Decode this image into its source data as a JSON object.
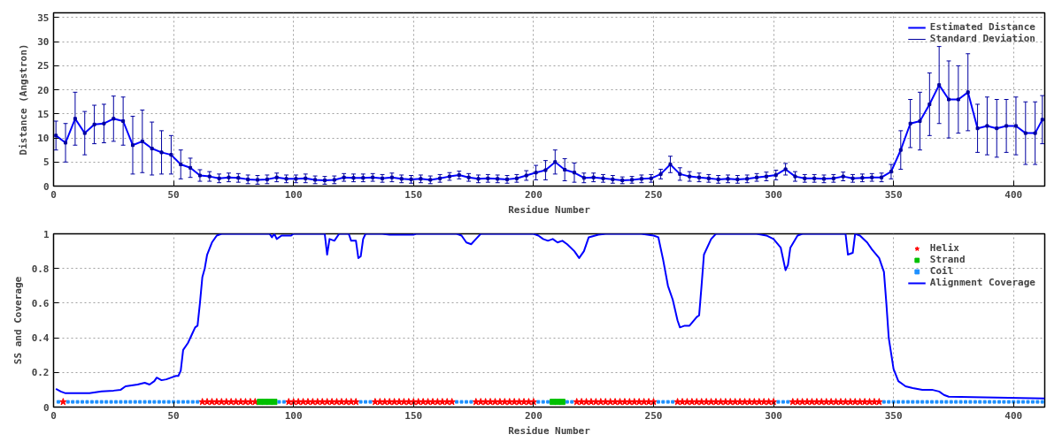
{
  "chart_data": [
    {
      "type": "line",
      "xlabel": "Residue Number",
      "ylabel": "Distance (Angstron)",
      "xlim": [
        0,
        413
      ],
      "ylim": [
        0,
        36
      ],
      "xticks": [
        0,
        50,
        100,
        150,
        200,
        250,
        300,
        350,
        400
      ],
      "yticks": [
        0,
        5,
        10,
        15,
        20,
        25,
        30,
        35
      ],
      "grid": true,
      "legend": "top right",
      "x": [
        1,
        5,
        9,
        13,
        17,
        21,
        25,
        29,
        33,
        37,
        41,
        45,
        49,
        53,
        57,
        61,
        65,
        69,
        73,
        77,
        81,
        85,
        89,
        93,
        97,
        101,
        105,
        109,
        113,
        117,
        121,
        125,
        129,
        133,
        137,
        141,
        145,
        149,
        153,
        157,
        161,
        165,
        169,
        173,
        177,
        181,
        185,
        189,
        193,
        197,
        201,
        205,
        209,
        213,
        217,
        221,
        225,
        229,
        233,
        237,
        241,
        245,
        249,
        253,
        257,
        261,
        265,
        269,
        273,
        277,
        281,
        285,
        289,
        293,
        297,
        301,
        305,
        309,
        313,
        317,
        321,
        325,
        329,
        333,
        337,
        341,
        345,
        349,
        353,
        357,
        361,
        365,
        369,
        373,
        377,
        381,
        385,
        389,
        393,
        397,
        401,
        405,
        409,
        412
      ],
      "series": [
        {
          "name": "Estimated Distance",
          "type": "line",
          "color": "#0000ff",
          "values": [
            10.5,
            9,
            14,
            11,
            12.8,
            13,
            14,
            13.5,
            8.5,
            9.3,
            7.8,
            7,
            6.5,
            4.5,
            3.8,
            2.2,
            2,
            1.6,
            1.8,
            1.7,
            1.4,
            1.3,
            1.4,
            1.8,
            1.5,
            1.5,
            1.6,
            1.3,
            1.2,
            1.3,
            1.8,
            1.7,
            1.7,
            1.8,
            1.6,
            1.8,
            1.5,
            1.4,
            1.5,
            1.3,
            1.6,
            2,
            2.3,
            1.8,
            1.5,
            1.6,
            1.5,
            1.4,
            1.6,
            2.2,
            2.8,
            3.3,
            5,
            3.4,
            2.8,
            1.7,
            1.8,
            1.6,
            1.4,
            1.2,
            1.3,
            1.5,
            1.6,
            2.5,
            4.5,
            2.5,
            2,
            1.8,
            1.6,
            1.4,
            1.5,
            1.4,
            1.5,
            1.8,
            2,
            2.3,
            3.5,
            2,
            1.6,
            1.6,
            1.5,
            1.6,
            2,
            1.6,
            1.7,
            1.8,
            1.8,
            3,
            7.5,
            13,
            13.5,
            17,
            21,
            18,
            18,
            19.5,
            12,
            12.5,
            12,
            12.5,
            12.5,
            11,
            11,
            13.8
          ]
        },
        {
          "name": "Standard Deviation",
          "type": "scatter",
          "marker": "square",
          "color": "#0000a0",
          "values": [
            10.5,
            9,
            14,
            11,
            12.8,
            13,
            14,
            13.5,
            8.5,
            9.3,
            7.8,
            7,
            6.5,
            4.5,
            3.8,
            2.2,
            2,
            1.6,
            1.8,
            1.7,
            1.4,
            1.3,
            1.4,
            1.8,
            1.5,
            1.5,
            1.6,
            1.3,
            1.2,
            1.3,
            1.8,
            1.7,
            1.7,
            1.8,
            1.6,
            1.8,
            1.5,
            1.4,
            1.5,
            1.3,
            1.6,
            2,
            2.3,
            1.8,
            1.5,
            1.6,
            1.5,
            1.4,
            1.6,
            2.2,
            2.8,
            3.3,
            5,
            3.4,
            2.8,
            1.7,
            1.8,
            1.6,
            1.4,
            1.2,
            1.3,
            1.5,
            1.6,
            2.5,
            4.5,
            2.5,
            2,
            1.8,
            1.6,
            1.4,
            1.5,
            1.4,
            1.5,
            1.8,
            2,
            2.3,
            3.5,
            2,
            1.6,
            1.6,
            1.5,
            1.6,
            2,
            1.6,
            1.7,
            1.8,
            1.8,
            3,
            7.5,
            13,
            13.5,
            17,
            21,
            18,
            18,
            19.5,
            12,
            12.5,
            12,
            12.5,
            12.5,
            11,
            11,
            13.8
          ],
          "errors": [
            3,
            4,
            5.5,
            4.5,
            4,
            4,
            4.7,
            5,
            6,
            6.5,
            5.5,
            4.5,
            4,
            3,
            2,
            1.2,
            1,
            0.9,
            0.9,
            0.9,
            0.9,
            0.9,
            0.9,
            0.9,
            0.8,
            0.8,
            0.9,
            0.8,
            0.8,
            0.8,
            0.8,
            0.8,
            0.8,
            0.8,
            0.8,
            0.9,
            0.8,
            0.8,
            0.8,
            0.8,
            0.8,
            0.8,
            0.8,
            0.8,
            0.8,
            0.8,
            0.8,
            0.8,
            0.8,
            1,
            1.5,
            2,
            2.5,
            2.3,
            2,
            1,
            0.9,
            0.8,
            0.8,
            0.7,
            0.7,
            0.8,
            0.8,
            1,
            1.7,
            1.3,
            1,
            0.9,
            0.8,
            0.8,
            0.8,
            0.8,
            0.8,
            0.8,
            0.9,
            1,
            1.2,
            1,
            0.8,
            0.8,
            0.8,
            0.8,
            0.9,
            0.8,
            0.8,
            0.8,
            0.9,
            1.5,
            4,
            5,
            6,
            6.5,
            8,
            8,
            7,
            8,
            5,
            6,
            6,
            5.5,
            6,
            6.5,
            6.5,
            5
          ]
        }
      ]
    },
    {
      "type": "scatter",
      "xlabel": "Residue Number",
      "ylabel": "SS and Coverage",
      "xlim": [
        0,
        413
      ],
      "ylim": [
        0,
        1
      ],
      "xticks": [
        0,
        50,
        100,
        150,
        200,
        250,
        300,
        350,
        400
      ],
      "yticks": [
        0,
        0.2,
        0.4,
        0.6,
        0.8,
        1
      ],
      "grid": true,
      "legend": "top right",
      "series": [
        {
          "name": "Helix",
          "marker": "star",
          "color": "#ff0000",
          "x": [
            4,
            62,
            64,
            66,
            68,
            70,
            72,
            74,
            76,
            78,
            80,
            82,
            84,
            98,
            100,
            102,
            104,
            106,
            108,
            110,
            112,
            114,
            116,
            118,
            120,
            122,
            124,
            126,
            134,
            136,
            138,
            140,
            142,
            144,
            146,
            148,
            150,
            152,
            154,
            156,
            158,
            160,
            162,
            164,
            166,
            176,
            178,
            180,
            182,
            184,
            186,
            188,
            190,
            192,
            194,
            196,
            198,
            200,
            218,
            220,
            222,
            224,
            226,
            228,
            230,
            232,
            234,
            236,
            238,
            240,
            242,
            244,
            246,
            248,
            250,
            260,
            262,
            264,
            266,
            268,
            270,
            272,
            274,
            276,
            278,
            280,
            282,
            284,
            286,
            288,
            290,
            292,
            294,
            296,
            298,
            300,
            308,
            310,
            312,
            314,
            316,
            318,
            320,
            322,
            324,
            326,
            328,
            330,
            332,
            334,
            336,
            338,
            340,
            342,
            344
          ],
          "values": [
            0.03,
            0.03,
            0.03,
            0.03,
            0.03,
            0.03,
            0.03,
            0.03,
            0.03,
            0.03,
            0.03,
            0.03,
            0.03,
            0.03,
            0.03,
            0.03,
            0.03,
            0.03,
            0.03,
            0.03,
            0.03,
            0.03,
            0.03,
            0.03,
            0.03,
            0.03,
            0.03,
            0.03,
            0.03,
            0.03,
            0.03,
            0.03,
            0.03,
            0.03,
            0.03,
            0.03,
            0.03,
            0.03,
            0.03,
            0.03,
            0.03,
            0.03,
            0.03,
            0.03,
            0.03,
            0.03,
            0.03,
            0.03,
            0.03,
            0.03,
            0.03,
            0.03,
            0.03,
            0.03,
            0.03,
            0.03,
            0.03,
            0.03,
            0.03,
            0.03,
            0.03,
            0.03,
            0.03,
            0.03,
            0.03,
            0.03,
            0.03,
            0.03,
            0.03,
            0.03,
            0.03,
            0.03,
            0.03,
            0.03,
            0.03,
            0.03,
            0.03,
            0.03,
            0.03,
            0.03,
            0.03,
            0.03,
            0.03,
            0.03,
            0.03,
            0.03,
            0.03,
            0.03,
            0.03,
            0.03,
            0.03,
            0.03,
            0.03,
            0.03,
            0.03,
            0.03,
            0.03,
            0.03,
            0.03,
            0.03,
            0.03,
            0.03,
            0.03,
            0.03,
            0.03,
            0.03,
            0.03,
            0.03,
            0.03,
            0.03,
            0.03,
            0.03,
            0.03,
            0.03,
            0.03
          ]
        },
        {
          "name": "Strand",
          "marker": "square",
          "color": "#00c000",
          "x": [
            86,
            88,
            90,
            92,
            208,
            210,
            212
          ],
          "values": [
            0.03,
            0.03,
            0.03,
            0.03,
            0.03,
            0.03,
            0.03
          ]
        },
        {
          "name": "Coil",
          "marker": "square",
          "color": "#1e90ff",
          "x": [
            2,
            6,
            8,
            10,
            12,
            14,
            16,
            18,
            20,
            22,
            24,
            26,
            28,
            30,
            32,
            34,
            36,
            38,
            40,
            42,
            44,
            46,
            48,
            50,
            52,
            54,
            56,
            58,
            60,
            94,
            96,
            128,
            130,
            132,
            168,
            170,
            172,
            174,
            202,
            204,
            206,
            214,
            216,
            252,
            254,
            256,
            258,
            302,
            304,
            306,
            346,
            348,
            350,
            352,
            354,
            356,
            358,
            360,
            362,
            364,
            366,
            368,
            370,
            372,
            374,
            376,
            378,
            380,
            382,
            384,
            386,
            388,
            390,
            392,
            394,
            396,
            398,
            400,
            402,
            404,
            406,
            408,
            410,
            412
          ],
          "values": [
            0.03,
            0.03,
            0.03,
            0.03,
            0.03,
            0.03,
            0.03,
            0.03,
            0.03,
            0.03,
            0.03,
            0.03,
            0.03,
            0.03,
            0.03,
            0.03,
            0.03,
            0.03,
            0.03,
            0.03,
            0.03,
            0.03,
            0.03,
            0.03,
            0.03,
            0.03,
            0.03,
            0.03,
            0.03,
            0.03,
            0.03,
            0.03,
            0.03,
            0.03,
            0.03,
            0.03,
            0.03,
            0.03,
            0.03,
            0.03,
            0.03,
            0.03,
            0.03,
            0.03,
            0.03,
            0.03,
            0.03,
            0.03,
            0.03,
            0.03,
            0.03,
            0.03,
            0.03,
            0.03,
            0.03,
            0.03,
            0.03,
            0.03,
            0.03,
            0.03,
            0.03,
            0.03,
            0.03,
            0.03,
            0.03,
            0.03,
            0.03,
            0.03,
            0.03,
            0.03,
            0.03,
            0.03,
            0.03,
            0.03,
            0.03,
            0.03,
            0.03,
            0.03,
            0.03,
            0.03,
            0.03,
            0.03,
            0.03,
            0.03
          ]
        },
        {
          "name": "Alignment Coverage",
          "type": "line",
          "color": "#0000ff",
          "x": [
            1,
            3,
            5,
            10,
            15,
            20,
            25,
            28,
            30,
            35,
            38,
            40,
            42,
            43,
            45,
            47,
            49,
            51,
            52,
            53,
            54,
            56,
            58,
            59,
            60,
            61,
            62,
            63,
            64,
            66,
            68,
            70,
            90,
            91,
            92,
            93,
            95,
            99,
            100,
            113,
            114,
            115,
            117,
            119,
            123,
            124,
            126,
            127,
            128,
            129,
            130,
            137,
            140,
            150,
            151,
            168,
            170,
            172,
            174,
            176,
            178,
            200,
            202,
            204,
            206,
            208,
            210,
            212,
            214,
            217,
            219,
            221,
            223,
            227,
            230,
            245,
            250,
            252,
            254,
            256,
            258,
            260,
            261,
            263,
            265,
            268,
            269,
            270,
            271,
            274,
            276,
            293,
            297,
            300,
            303,
            305,
            306,
            307,
            310,
            312,
            330,
            331,
            333,
            334,
            336,
            339,
            341,
            344,
            346,
            347,
            348,
            350,
            352,
            355,
            358,
            362,
            366,
            369,
            371,
            373,
            413
          ],
          "values": [
            0.105,
            0.09,
            0.08,
            0.08,
            0.08,
            0.09,
            0.095,
            0.1,
            0.12,
            0.13,
            0.14,
            0.13,
            0.15,
            0.17,
            0.155,
            0.16,
            0.17,
            0.18,
            0.18,
            0.21,
            0.33,
            0.37,
            0.43,
            0.46,
            0.47,
            0.6,
            0.75,
            0.8,
            0.88,
            0.95,
            0.99,
            1,
            1,
            0.98,
            1,
            0.97,
            0.99,
            0.99,
            1,
            1,
            0.88,
            0.97,
            0.96,
            1,
            1,
            0.96,
            0.96,
            0.86,
            0.87,
            0.97,
            1,
            1,
            0.995,
            0.995,
            1,
            1,
            0.99,
            0.95,
            0.94,
            0.97,
            1,
            1,
            0.99,
            0.97,
            0.96,
            0.97,
            0.95,
            0.96,
            0.94,
            0.9,
            0.86,
            0.9,
            0.98,
            0.995,
            1,
            1,
            0.99,
            0.98,
            0.85,
            0.7,
            0.62,
            0.5,
            0.46,
            0.47,
            0.47,
            0.52,
            0.53,
            0.7,
            0.88,
            0.97,
            1,
            1,
            0.99,
            0.97,
            0.92,
            0.79,
            0.82,
            0.92,
            0.99,
            1,
            1,
            0.88,
            0.89,
            1,
            0.99,
            0.95,
            0.91,
            0.86,
            0.78,
            0.6,
            0.4,
            0.22,
            0.15,
            0.12,
            0.11,
            0.1,
            0.1,
            0.09,
            0.07,
            0.06,
            0.05
          ]
        }
      ]
    }
  ]
}
